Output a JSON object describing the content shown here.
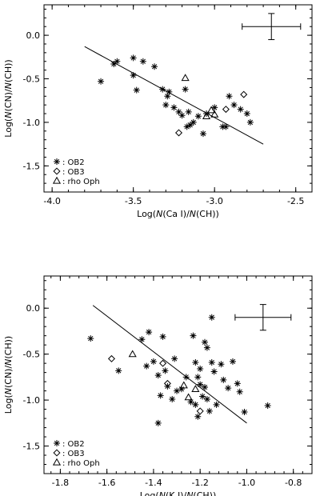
{
  "chart_data": [
    {
      "type": "scatter",
      "xlabel": "Log(N(Ca I)/N(CH))",
      "ylabel": "Log(N(CN)/N(CH))",
      "xlim": [
        -4.05,
        -2.4
      ],
      "ylim": [
        -1.8,
        0.35
      ],
      "xticks": [
        -4.0,
        -3.5,
        -3.0,
        -2.5
      ],
      "xtick_labels": [
        "-4.0",
        "-3.5",
        "-3.0",
        "-2.5"
      ],
      "yticks": [
        0.0,
        -0.5,
        -1.0,
        -1.5
      ],
      "ytick_labels": [
        "0.0",
        "-0.5",
        "-1.0",
        "-1.5"
      ],
      "legend": {
        "position": "bottom-left",
        "entries": [
          {
            "marker": "asterisk",
            "label": ": OB2"
          },
          {
            "marker": "diamond",
            "label": ": OB3"
          },
          {
            "marker": "triangle",
            "label": ": rho Oph"
          }
        ]
      },
      "fit_line": {
        "x": [
          -3.8,
          -2.7
        ],
        "y": [
          -0.13,
          -1.25
        ]
      },
      "error_bar": {
        "x": -2.65,
        "y": 0.1,
        "xerr": 0.18,
        "yerr": 0.15
      },
      "series": [
        {
          "name": ": OB2",
          "marker": "asterisk",
          "x": [
            -3.7,
            -3.62,
            -3.6,
            -3.5,
            -3.5,
            -3.48,
            -3.44,
            -3.37,
            -3.32,
            -3.3,
            -3.29,
            -3.28,
            -3.25,
            -3.22,
            -3.2,
            -3.18,
            -3.17,
            -3.16,
            -3.15,
            -3.13,
            -3.1,
            -3.07,
            -3.05,
            -3.0,
            -2.95,
            -2.93,
            -2.91,
            -2.88,
            -2.84,
            -2.8,
            -2.78
          ],
          "y": [
            -0.53,
            -0.33,
            -0.3,
            -0.26,
            -0.46,
            -0.63,
            -0.3,
            -0.36,
            -0.62,
            -0.8,
            -0.7,
            -0.65,
            -0.83,
            -0.88,
            -0.92,
            -0.62,
            -1.05,
            -0.88,
            -1.03,
            -1.0,
            -0.93,
            -1.13,
            -0.9,
            -0.83,
            -1.05,
            -1.05,
            -0.7,
            -0.8,
            -0.85,
            -0.9,
            -1.0
          ]
        },
        {
          "name": ": OB3",
          "marker": "diamond",
          "x": [
            -3.22,
            -2.93,
            -2.82
          ],
          "y": [
            -1.12,
            -0.85,
            -0.68
          ]
        },
        {
          "name": ": rho Oph",
          "marker": "triangle",
          "x": [
            -3.18,
            -3.05,
            -3.02,
            -3.0
          ],
          "y": [
            -0.49,
            -0.93,
            -0.86,
            -0.91
          ]
        }
      ]
    },
    {
      "type": "scatter",
      "xlabel": "Log(N(K I)/N(CH))",
      "ylabel": "Log(N(CN)/N(CH))",
      "xlim": [
        -1.87,
        -0.72
      ],
      "ylim": [
        -1.8,
        0.35
      ],
      "xticks": [
        -1.8,
        -1.6,
        -1.4,
        -1.2,
        -1.0,
        -0.8
      ],
      "xtick_labels": [
        "-1.8",
        "-1.6",
        "-1.4",
        "-1.2",
        "-1.0",
        "-0.8"
      ],
      "yticks": [
        0.0,
        -0.5,
        -1.0,
        -1.5
      ],
      "ytick_labels": [
        "0.0",
        "-0.5",
        "-1.0",
        "-1.5"
      ],
      "legend": {
        "position": "bottom-left",
        "entries": [
          {
            "marker": "asterisk",
            "label": ": OB2"
          },
          {
            "marker": "diamond",
            "label": ": OB3"
          },
          {
            "marker": "triangle",
            "label": ": rho Oph"
          }
        ]
      },
      "fit_line": {
        "x": [
          -1.66,
          -1.0
        ],
        "y": [
          0.03,
          -1.25
        ]
      },
      "error_bar": {
        "x": -0.93,
        "y": -0.1,
        "xerr": 0.12,
        "yerr": 0.14
      },
      "series": [
        {
          "name": ": OB2",
          "marker": "asterisk",
          "x": [
            -1.67,
            -1.55,
            -1.45,
            -1.43,
            -1.42,
            -1.4,
            -1.38,
            -1.38,
            -1.37,
            -1.36,
            -1.35,
            -1.34,
            -1.32,
            -1.31,
            -1.3,
            -1.28,
            -1.26,
            -1.24,
            -1.23,
            -1.22,
            -1.22,
            -1.21,
            -1.21,
            -1.2,
            -1.2,
            -1.19,
            -1.18,
            -1.18,
            -1.17,
            -1.17,
            -1.16,
            -1.15,
            -1.15,
            -1.14,
            -1.13,
            -1.11,
            -1.1,
            -1.08,
            -1.06,
            -1.04,
            -1.03,
            -1.01,
            -0.91
          ],
          "y": [
            -0.33,
            -0.68,
            -0.34,
            -0.63,
            -0.26,
            -0.58,
            -1.25,
            -0.73,
            -0.95,
            -0.31,
            -0.68,
            -0.85,
            -0.99,
            -0.55,
            -0.9,
            -0.88,
            -0.75,
            -1.02,
            -0.3,
            -0.59,
            -1.05,
            -0.75,
            -1.18,
            -0.83,
            -0.66,
            -0.96,
            -0.37,
            -0.86,
            -0.43,
            -0.99,
            -1.12,
            -0.1,
            -0.59,
            -0.69,
            -1.05,
            -0.61,
            -0.78,
            -0.87,
            -0.58,
            -0.82,
            -0.91,
            -1.13,
            -1.06
          ]
        },
        {
          "name": ": OB3",
          "marker": "diamond",
          "x": [
            -1.58,
            -1.36,
            -1.34,
            -1.2
          ],
          "y": [
            -0.55,
            -0.6,
            -0.82,
            -1.12
          ]
        },
        {
          "name": ": rho Oph",
          "marker": "triangle",
          "x": [
            -1.49,
            -1.27,
            -1.25,
            -1.22
          ],
          "y": [
            -0.5,
            -0.84,
            -0.97,
            -0.88
          ]
        }
      ]
    }
  ]
}
